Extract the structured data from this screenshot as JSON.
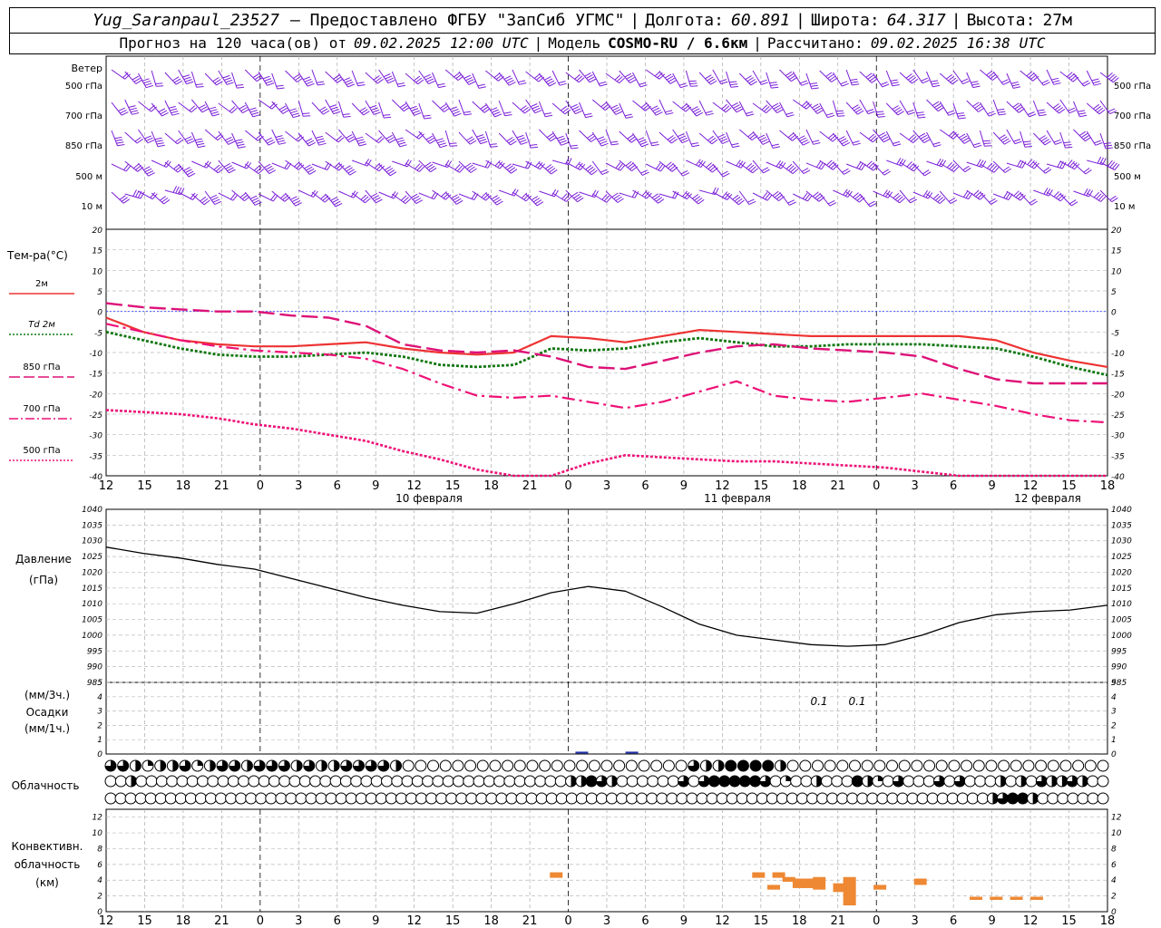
{
  "header": {
    "station": "Yug_Saranpaul_23527",
    "provider": "— Предоставлено ФГБУ \"ЗапСиб УГМС\"",
    "lon_label": "Долгота:",
    "lon_value": "60.891",
    "lat_label": "Широта:",
    "lat_value": "64.317",
    "alt_label": "Высота:",
    "alt_value": "27м",
    "forecast_prefix": "Прогноз на 120 часа(ов) от",
    "forecast_time": "09.02.2025 12:00 UTC",
    "model_label": "Модель",
    "model_value": "COSMO-RU / 6.6км",
    "calc_label": "Рассчитано:",
    "calc_time": "09.02.2025 16:38 UTC"
  },
  "labels": {
    "wind": "Ветер",
    "wind_levels": [
      "500 гПа",
      "700 гПа",
      "850 гПа",
      "500 м",
      "10 м"
    ],
    "temp_title": "Тем-ра(°С)",
    "legend": [
      "2м",
      "Td 2м",
      "850 гПа",
      "700 гПа",
      "500 гПа"
    ],
    "pressure": [
      "Давление",
      "(гПа)"
    ],
    "precip": [
      "(мм/3ч.)",
      "Осадки",
      "(мм/1ч.)"
    ],
    "precip_values": [
      "0.1",
      "0.1"
    ],
    "cloud": "Облачность",
    "conv": [
      "Конвективн.",
      "облачность",
      "(км)"
    ]
  },
  "colors": {
    "wind": "#7b1fd8",
    "t2m": "#ee3333",
    "td2m": "#117711",
    "t850": "#dd1177",
    "t700": "#ee1177",
    "t500": "#ee1177",
    "zero_line": "#3344ff",
    "conv": "#ee8833",
    "precip": "#2233aa"
  },
  "chart_data": {
    "type": "line",
    "x_ticks": [
      "12",
      "15",
      "18",
      "21",
      "0",
      "3",
      "6",
      "9",
      "12",
      "15",
      "18",
      "21",
      "0",
      "3",
      "6",
      "9",
      "12",
      "15",
      "18",
      "21",
      "0",
      "3",
      "6",
      "9",
      "12",
      "15",
      "18"
    ],
    "date_labels": [
      "10 февраля",
      "11 февраля",
      "12 февраля"
    ],
    "temperature": {
      "ylim": [
        -40,
        20
      ],
      "yticks": [
        20,
        15,
        10,
        5,
        0,
        -5,
        -10,
        -15,
        -20,
        -25,
        -30,
        -35,
        -40
      ],
      "series": [
        {
          "name": "2м",
          "values": [
            -1.5,
            -5,
            -7,
            -8,
            -8.5,
            -8.5,
            -8,
            -7.5,
            -9,
            -10,
            -10.5,
            -10,
            -6,
            -6.5,
            -7.5,
            -6,
            -4.5,
            -5,
            -5.5,
            -6,
            -6,
            -6,
            -6,
            -6,
            -7,
            -10,
            -12,
            -13.5
          ]
        },
        {
          "name": "Td 2м",
          "values": [
            -5,
            -7,
            -9,
            -10.5,
            -11,
            -11,
            -10.5,
            -10,
            -11,
            -13,
            -13.5,
            -13,
            -9,
            -9.5,
            -9,
            -7.5,
            -6.5,
            -7.5,
            -8.5,
            -8.5,
            -8,
            -8,
            -8,
            -8.5,
            -9,
            -11,
            -13.5,
            -15.5
          ]
        },
        {
          "name": "850 гПа",
          "values": [
            2,
            1,
            0.5,
            0,
            0,
            -1,
            -1.5,
            -3.5,
            -8,
            -9.5,
            -10,
            -9.5,
            -11,
            -13.5,
            -14,
            -12,
            -10,
            -8.5,
            -8,
            -9,
            -9.5,
            -10,
            -11,
            -14,
            -16.5,
            -17.5,
            -17.5,
            -17.5
          ]
        },
        {
          "name": "700 гПа",
          "values": [
            -3,
            -5,
            -7,
            -8.5,
            -9.5,
            -10,
            -10.5,
            -11.5,
            -14,
            -17.5,
            -20.5,
            -21,
            -20.5,
            -22,
            -23.5,
            -22,
            -19.5,
            -17,
            -20.5,
            -21.5,
            -22,
            -21,
            -20,
            -21.5,
            -23,
            -25,
            -26.5,
            -27
          ]
        },
        {
          "name": "500 гПа",
          "values": [
            -24,
            -24.5,
            -25,
            -26,
            -27.5,
            -28.5,
            -30,
            -31.5,
            -34,
            -36,
            -38.5,
            -40,
            -40,
            -37,
            -35,
            -35.5,
            -36,
            -36.5,
            -36.5,
            -37,
            -37.5,
            -38,
            -39,
            -40,
            -40,
            -40,
            -40,
            -40
          ]
        }
      ]
    },
    "pressure": {
      "ylim": [
        985,
        1040
      ],
      "yticks": [
        1040,
        1035,
        1030,
        1025,
        1020,
        1015,
        1010,
        1005,
        1000,
        995,
        990,
        985
      ],
      "values": [
        1028,
        1026,
        1024.5,
        1022.5,
        1021,
        1018,
        1015,
        1012,
        1009.5,
        1007.5,
        1007,
        1010,
        1013.5,
        1015.5,
        1014,
        1009,
        1003.5,
        1000,
        998.5,
        997,
        996.5,
        997,
        1000,
        1004,
        1006.5,
        1007.5,
        1008,
        1009.5
      ]
    },
    "precip": {
      "ylim": [
        0,
        5
      ],
      "yticks": [
        5,
        4,
        3,
        2,
        1,
        0
      ],
      "values": [
        0,
        0,
        0,
        0,
        0,
        0,
        0,
        0,
        0,
        0,
        0,
        0,
        0,
        0,
        0,
        0,
        0,
        0,
        0,
        0.1,
        0,
        0.1,
        0,
        0,
        0,
        0,
        0,
        0,
        0,
        0,
        0,
        0,
        0,
        0,
        0,
        0,
        0,
        0,
        0,
        0,
        0
      ]
    },
    "cloud_rows": [
      [
        3,
        3,
        2,
        1,
        2,
        2,
        3,
        1,
        2,
        3,
        3,
        2,
        3,
        3,
        3,
        2,
        3,
        2,
        2,
        3,
        3,
        3,
        3,
        2,
        0,
        0,
        0,
        0,
        0,
        0,
        0,
        0,
        0,
        0,
        0,
        0,
        0,
        0,
        0,
        0,
        0,
        0,
        0,
        0,
        0,
        0,
        0,
        3,
        2,
        2,
        4,
        4,
        4,
        4,
        2,
        0,
        0,
        0,
        0,
        0,
        0,
        0,
        0,
        0,
        0,
        0,
        0,
        0,
        0,
        0,
        0,
        0,
        0,
        0,
        0,
        0,
        0,
        0,
        0,
        0,
        0
      ],
      [
        0,
        0,
        2,
        0,
        0,
        0,
        0,
        0,
        0,
        0,
        0,
        0,
        0,
        0,
        0,
        0,
        0,
        0,
        0,
        0,
        0,
        0,
        0,
        0,
        0,
        0,
        0,
        0,
        0,
        0,
        0,
        0,
        0,
        0,
        0,
        0,
        0,
        0,
        0,
        0,
        0,
        0,
        0,
        0,
        0,
        2,
        2,
        4,
        3,
        2,
        0,
        0,
        0,
        0,
        0,
        0,
        3,
        0,
        3,
        4,
        4,
        4,
        4,
        4,
        3,
        0,
        1,
        0,
        0,
        2,
        0,
        0,
        0,
        4,
        2,
        1,
        0,
        3,
        0,
        0,
        0,
        3,
        0,
        3,
        0,
        0,
        0,
        2,
        0,
        2,
        0,
        3,
        2,
        2,
        3,
        2,
        0,
        0
      ],
      [
        0,
        0,
        0,
        0,
        0,
        0,
        0,
        0,
        0,
        0,
        0,
        0,
        0,
        0,
        0,
        0,
        0,
        0,
        0,
        0,
        0,
        0,
        0,
        0,
        0,
        0,
        0,
        0,
        0,
        0,
        0,
        0,
        0,
        0,
        0,
        0,
        0,
        0,
        0,
        0,
        0,
        0,
        0,
        0,
        0,
        0,
        0,
        0,
        0,
        0,
        0,
        0,
        0,
        0,
        0,
        0,
        0,
        0,
        0,
        0,
        0,
        0,
        0,
        0,
        0,
        0,
        0,
        0,
        0,
        0,
        0,
        0,
        0,
        0,
        0,
        0,
        0,
        0,
        0,
        0,
        0,
        0,
        0,
        0,
        0,
        0,
        0,
        0,
        2,
        3,
        4,
        4,
        2,
        0,
        0,
        0,
        0,
        0,
        0,
        0
      ]
    ],
    "convective": {
      "ylim": [
        0,
        13
      ],
      "yticks": [
        12,
        10,
        8,
        6,
        4,
        2,
        0
      ],
      "bars": [
        {
          "t": 44.5,
          "lo": 4.3,
          "hi": 5
        },
        {
          "t": 64.5,
          "lo": 4.3,
          "hi": 5
        },
        {
          "t": 66,
          "lo": 2.8,
          "hi": 3.4
        },
        {
          "t": 66.5,
          "lo": 4.3,
          "hi": 5
        },
        {
          "t": 67.5,
          "lo": 3.8,
          "hi": 4.4
        },
        {
          "t": 68.5,
          "lo": 3,
          "hi": 4.2
        },
        {
          "t": 69.5,
          "lo": 3,
          "hi": 4.2
        },
        {
          "t": 70.5,
          "lo": 2.8,
          "hi": 4.4
        },
        {
          "t": 72.5,
          "lo": 2.5,
          "hi": 3.6
        },
        {
          "t": 73.5,
          "lo": 0.8,
          "hi": 4.4
        },
        {
          "t": 76.5,
          "lo": 2.8,
          "hi": 3.4
        },
        {
          "t": 80.5,
          "lo": 3.4,
          "hi": 4.2
        },
        {
          "t": 86,
          "lo": 1.5,
          "hi": 1.9
        },
        {
          "t": 88,
          "lo": 1.5,
          "hi": 1.9
        },
        {
          "t": 90,
          "lo": 1.5,
          "hi": 1.9
        },
        {
          "t": 92,
          "lo": 1.5,
          "hi": 1.9
        }
      ]
    }
  }
}
